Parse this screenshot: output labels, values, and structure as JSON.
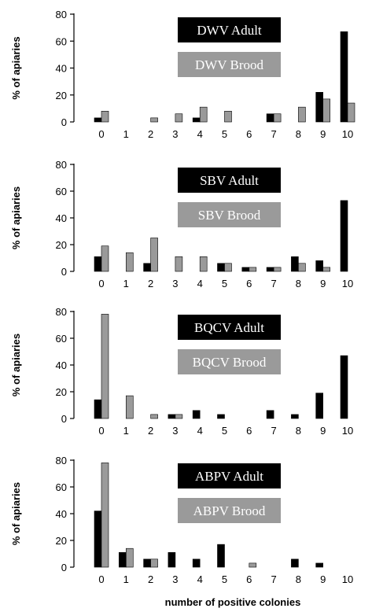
{
  "colors": {
    "adult": "#000000",
    "brood": "#9a9a9a"
  },
  "xlabel": "number of positive colonies",
  "chart_data": [
    {
      "type": "bar",
      "categories": [
        "0",
        "1",
        "2",
        "3",
        "4",
        "5",
        "6",
        "7",
        "8",
        "9",
        "10"
      ],
      "ylabel": "% of apiaries",
      "ylim": [
        0,
        80
      ],
      "yticks": [
        0,
        20,
        40,
        60,
        80
      ],
      "series": [
        {
          "name": "DWV Adult",
          "values": [
            3,
            0,
            0,
            0,
            3,
            0,
            0,
            6,
            0,
            22,
            67
          ]
        },
        {
          "name": "DWV Brood",
          "values": [
            8,
            0,
            3,
            6,
            11,
            8,
            0,
            6,
            11,
            17,
            14
          ]
        }
      ]
    },
    {
      "type": "bar",
      "categories": [
        "0",
        "1",
        "2",
        "3",
        "4",
        "5",
        "6",
        "7",
        "8",
        "9",
        "10"
      ],
      "ylabel": "% of apiaries",
      "ylim": [
        0,
        80
      ],
      "yticks": [
        0,
        20,
        40,
        60,
        80
      ],
      "series": [
        {
          "name": "SBV Adult",
          "values": [
            11,
            0,
            6,
            0,
            0,
            6,
            3,
            3,
            11,
            8,
            53
          ]
        },
        {
          "name": "SBV Brood",
          "values": [
            19,
            14,
            25,
            11,
            11,
            6,
            3,
            3,
            6,
            3,
            0
          ]
        }
      ]
    },
    {
      "type": "bar",
      "categories": [
        "0",
        "1",
        "2",
        "3",
        "4",
        "5",
        "6",
        "7",
        "8",
        "9",
        "10"
      ],
      "ylabel": "% of apiaries",
      "ylim": [
        0,
        80
      ],
      "yticks": [
        0,
        20,
        40,
        60,
        80
      ],
      "series": [
        {
          "name": "BQCV Adult",
          "values": [
            14,
            0,
            0,
            3,
            6,
            3,
            0,
            6,
            3,
            19,
            47
          ]
        },
        {
          "name": "BQCV Brood",
          "values": [
            78,
            17,
            3,
            3,
            0,
            0,
            0,
            0,
            0,
            0,
            0
          ]
        }
      ]
    },
    {
      "type": "bar",
      "categories": [
        "0",
        "1",
        "2",
        "3",
        "4",
        "5",
        "6",
        "7",
        "8",
        "9",
        "10"
      ],
      "ylabel": "% of apiaries",
      "ylim": [
        0,
        80
      ],
      "yticks": [
        0,
        20,
        40,
        60,
        80
      ],
      "series": [
        {
          "name": "ABPV Adult",
          "values": [
            42,
            11,
            6,
            11,
            6,
            17,
            0,
            0,
            6,
            3,
            0
          ]
        },
        {
          "name": "ABPV Brood",
          "values": [
            78,
            14,
            6,
            0,
            0,
            0,
            3,
            0,
            0,
            0,
            0
          ]
        }
      ]
    }
  ]
}
